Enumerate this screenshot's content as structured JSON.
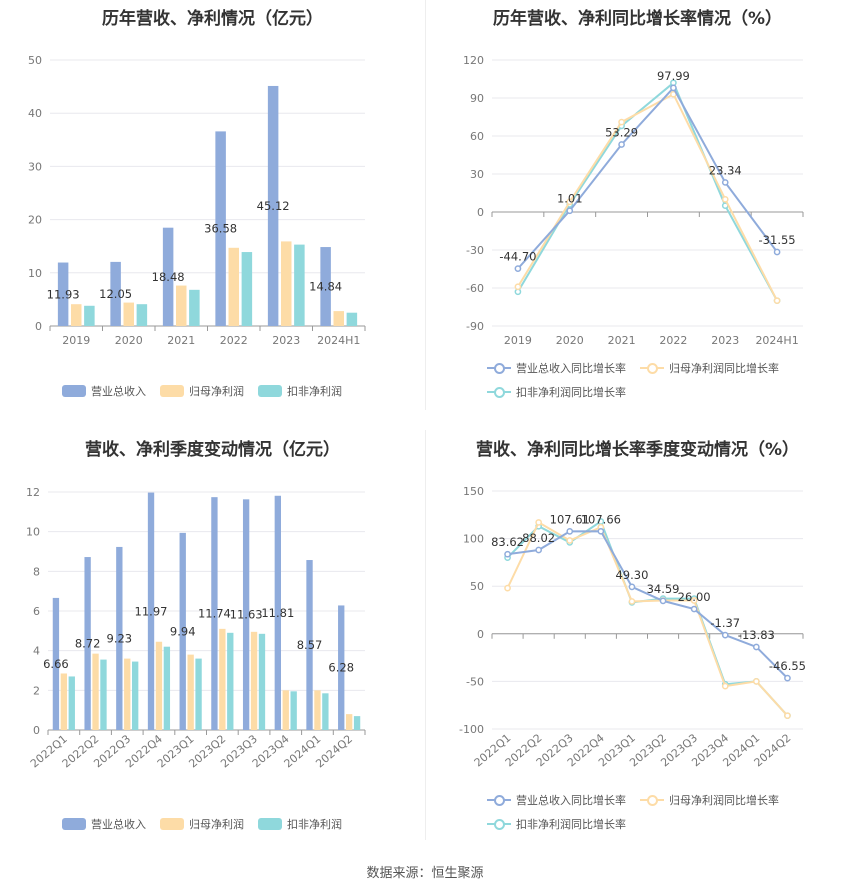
{
  "colors": {
    "revenue": "#8fabdb",
    "net_profit": "#fddca7",
    "deducted_profit": "#8fd8dc",
    "grid": "#e8e8ee",
    "axis": "#999999"
  },
  "source_text": "数据来源：恒生聚源",
  "panels": [
    {
      "title": "历年营收、净利情况（亿元）",
      "legend": [
        {
          "label": "营业总收入",
          "kind": "bar",
          "color_key": "revenue"
        },
        {
          "label": "归母净利润",
          "kind": "bar",
          "color_key": "net_profit"
        },
        {
          "label": "扣非净利润",
          "kind": "bar",
          "color_key": "deducted_profit"
        }
      ]
    },
    {
      "title": "历年营收、净利同比增长率情况（%）",
      "legend": [
        {
          "label": "营业总收入同比增长率",
          "kind": "line",
          "color_key": "revenue"
        },
        {
          "label": "归母净利润同比增长率",
          "kind": "line",
          "color_key": "net_profit"
        },
        {
          "label": "扣非净利润同比增长率",
          "kind": "line",
          "color_key": "deducted_profit"
        }
      ]
    },
    {
      "title": "营收、净利季度变动情况（亿元）",
      "legend": [
        {
          "label": "营业总收入",
          "kind": "bar",
          "color_key": "revenue"
        },
        {
          "label": "归母净利润",
          "kind": "bar",
          "color_key": "net_profit"
        },
        {
          "label": "扣非净利润",
          "kind": "bar",
          "color_key": "deducted_profit"
        }
      ]
    },
    {
      "title": "营收、净利同比增长率季度变动情况（%）",
      "legend": [
        {
          "label": "营业总收入同比增长率",
          "kind": "line",
          "color_key": "revenue"
        },
        {
          "label": "归母净利润同比增长率",
          "kind": "line",
          "color_key": "net_profit"
        },
        {
          "label": "扣非净利润同比增长率",
          "kind": "line",
          "color_key": "deducted_profit"
        }
      ]
    }
  ],
  "chart_data": [
    {
      "type": "bar",
      "title": "历年营收、净利情况（亿元）",
      "categories": [
        "2019",
        "2020",
        "2021",
        "2022",
        "2023",
        "2024H1"
      ],
      "ylim": [
        0,
        50
      ],
      "yticks": [
        0,
        10,
        20,
        30,
        40,
        50
      ],
      "grid": true,
      "legend_position": "bottom",
      "series": [
        {
          "name": "营业总收入",
          "color_key": "revenue",
          "values": [
            11.93,
            12.05,
            18.48,
            36.58,
            45.12,
            14.84
          ],
          "labels": [
            "11.93",
            "12.05",
            "18.48",
            "36.58",
            "45.12",
            "14.84"
          ]
        },
        {
          "name": "归母净利润",
          "color_key": "net_profit",
          "values": [
            4.1,
            4.4,
            7.6,
            14.7,
            15.9,
            2.8
          ]
        },
        {
          "name": "扣非净利润",
          "color_key": "deducted_profit",
          "values": [
            3.8,
            4.1,
            6.8,
            13.9,
            15.3,
            2.5
          ]
        }
      ]
    },
    {
      "type": "line",
      "title": "历年营收、净利同比增长率情况（%）",
      "categories": [
        "2019",
        "2020",
        "2021",
        "2022",
        "2023",
        "2024H1"
      ],
      "ylim": [
        -90,
        120
      ],
      "yticks": [
        -90,
        -60,
        -30,
        0,
        30,
        60,
        90,
        120
      ],
      "grid": true,
      "legend_position": "bottom",
      "series": [
        {
          "name": "营业总收入同比增长率",
          "color_key": "revenue",
          "values": [
            -44.7,
            1.01,
            53.29,
            97.99,
            23.34,
            -31.55
          ],
          "labels": [
            "-44.70",
            "1.01",
            "53.29",
            "97.99",
            "23.34",
            "-31.55"
          ]
        },
        {
          "name": "归母净利润同比增长率",
          "color_key": "net_profit",
          "values": [
            -59,
            8,
            71,
            93,
            10,
            -70
          ]
        },
        {
          "name": "扣非净利润同比增长率",
          "color_key": "deducted_profit",
          "values": [
            -63,
            6,
            68,
            102,
            5,
            -70
          ]
        }
      ]
    },
    {
      "type": "bar",
      "title": "营收、净利季度变动情况（亿元）",
      "categories": [
        "2022Q1",
        "2022Q2",
        "2022Q3",
        "2022Q4",
        "2023Q1",
        "2023Q2",
        "2023Q3",
        "2023Q4",
        "2024Q1",
        "2024Q2"
      ],
      "ylim": [
        0,
        12
      ],
      "yticks": [
        0,
        2,
        4,
        6,
        8,
        10,
        12
      ],
      "grid": true,
      "legend_position": "bottom",
      "series": [
        {
          "name": "营业总收入",
          "color_key": "revenue",
          "values": [
            6.66,
            8.72,
            9.23,
            11.97,
            9.94,
            11.74,
            11.63,
            11.81,
            8.57,
            6.28
          ],
          "labels": [
            "6.66",
            "8.72",
            "9.23",
            "11.97",
            "9.94",
            "11.74",
            "11.63",
            "11.81",
            "8.57",
            "6.28"
          ]
        },
        {
          "name": "归母净利润",
          "color_key": "net_profit",
          "values": [
            2.85,
            3.85,
            3.6,
            4.45,
            3.8,
            5.1,
            4.95,
            2.0,
            2.0,
            0.8
          ]
        },
        {
          "name": "扣非净利润",
          "color_key": "deducted_profit",
          "values": [
            2.7,
            3.55,
            3.45,
            4.2,
            3.6,
            4.9,
            4.85,
            1.95,
            1.85,
            0.7
          ]
        }
      ]
    },
    {
      "type": "line",
      "title": "营收、净利同比增长率季度变动情况（%）",
      "categories": [
        "2022Q1",
        "2022Q2",
        "2022Q3",
        "2022Q4",
        "2023Q1",
        "2023Q2",
        "2023Q3",
        "2023Q4",
        "2024Q1",
        "2024Q2"
      ],
      "ylim": [
        -100,
        150
      ],
      "yticks": [
        -100,
        -50,
        0,
        50,
        100,
        150
      ],
      "grid": true,
      "legend_position": "bottom",
      "series": [
        {
          "name": "营业总收入同比增长率",
          "color_key": "revenue",
          "values": [
            83.62,
            88.02,
            107.61,
            107.66,
            49.3,
            34.59,
            26.0,
            -1.37,
            -13.83,
            -46.55
          ],
          "labels": [
            "83.62",
            "88.02",
            "107.61",
            "107.66",
            "49.30",
            "34.59",
            "26.00",
            "-1.37",
            "-13.83",
            "-46.55"
          ]
        },
        {
          "name": "归母净利润同比增长率",
          "color_key": "net_profit",
          "values": [
            48,
            117,
            98,
            112,
            34,
            35,
            35,
            -55,
            -50,
            -86
          ]
        },
        {
          "name": "扣非净利润同比增长率",
          "color_key": "deducted_profit",
          "values": [
            80,
            113,
            96,
            118,
            33,
            37,
            37,
            -53,
            -50,
            -86
          ]
        }
      ]
    }
  ]
}
